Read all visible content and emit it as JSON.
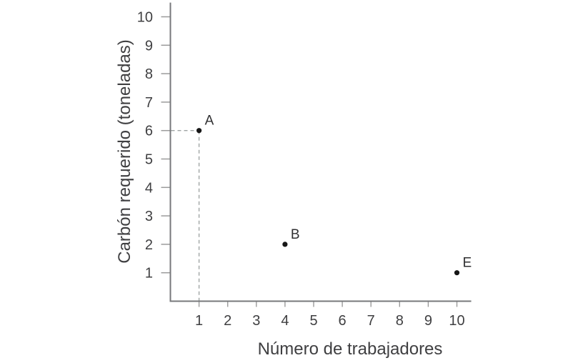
{
  "chart_data": {
    "type": "scatter",
    "title": "",
    "xlabel": "Número de trabajadores",
    "ylabel": "Carbón requerido (toneladas)",
    "x_ticks": [
      1,
      2,
      3,
      4,
      5,
      6,
      7,
      8,
      9,
      10
    ],
    "y_ticks": [
      1,
      2,
      3,
      4,
      5,
      6,
      7,
      8,
      9,
      10
    ],
    "xlim": [
      0,
      10.5
    ],
    "ylim": [
      0,
      10.5
    ],
    "grid": false,
    "legend": false,
    "points": [
      {
        "label": "A",
        "x": 1,
        "y": 6,
        "guide_lines": true
      },
      {
        "label": "B",
        "x": 4,
        "y": 2,
        "guide_lines": false
      },
      {
        "label": "E",
        "x": 10,
        "y": 1,
        "guide_lines": false
      }
    ],
    "colors": {
      "background": "#ffffff",
      "axis": "#77787b",
      "tick": "#9b9b9b",
      "tick_label": "#3f3f41",
      "axis_title": "#3f3f41",
      "point": "#161616",
      "point_label": "#2f2f31",
      "guide": "#9fa4a3"
    }
  }
}
